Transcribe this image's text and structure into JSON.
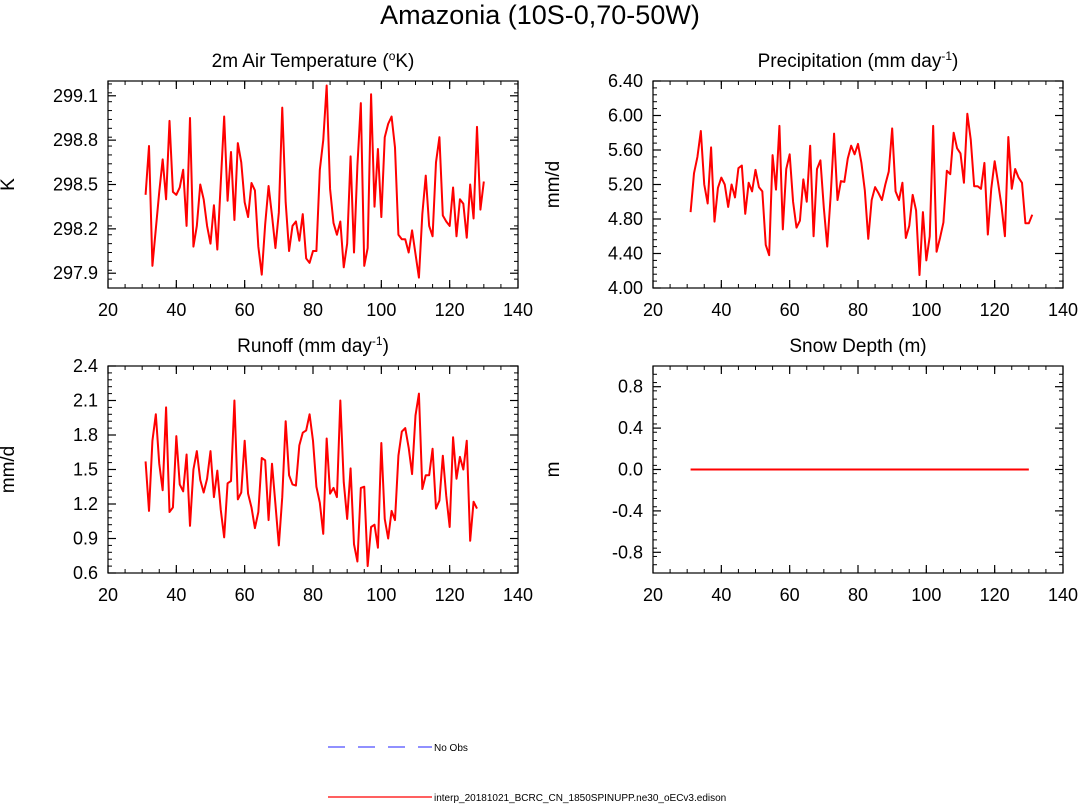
{
  "figure": {
    "title": "Amazonia (10S-0,70-50W)"
  },
  "legend": {
    "items": [
      {
        "label": "No Obs",
        "color": "#4d4dff",
        "style": "dashed"
      },
      {
        "label": "interp_20181021_BCRC_CN_1850SPINUPP.ne30_oECv3.edison",
        "color": "#ff0000",
        "style": "solid"
      }
    ]
  },
  "colors": {
    "series": "#ff0000",
    "axis": "#000000",
    "obs": "#4d4dff"
  },
  "chart_data": [
    {
      "type": "line",
      "title": "2m Air Temperature (",
      "title_sup": "o",
      "title_after": "K)",
      "xlabel": "",
      "ylabel": "K",
      "xlim": [
        20,
        140
      ],
      "ylim": [
        297.8,
        299.2
      ],
      "xticks": [
        20,
        40,
        60,
        80,
        100,
        120,
        140
      ],
      "yticks": [
        297.9,
        298.2,
        298.5,
        298.8,
        299.1
      ],
      "ytick_labels": [
        "297.9",
        "298.2",
        "298.5",
        "298.8",
        "299.1"
      ],
      "x_start": 31,
      "series": [
        {
          "name": "interp_20181021_BCRC_CN_1850SPINUPP.ne30_oECv3.edison",
          "values": [
            298.43,
            298.76,
            297.95,
            298.2,
            298.45,
            298.67,
            298.4,
            298.93,
            298.45,
            298.43,
            298.48,
            298.6,
            298.22,
            298.95,
            298.08,
            298.22,
            298.5,
            298.4,
            298.22,
            298.1,
            298.36,
            298.06,
            298.51,
            298.96,
            298.39,
            298.72,
            298.26,
            298.78,
            298.65,
            298.38,
            298.28,
            298.51,
            298.46,
            298.08,
            297.89,
            298.23,
            298.49,
            298.29,
            298.07,
            298.31,
            299.02,
            298.38,
            298.05,
            298.22,
            298.25,
            298.12,
            298.3,
            298.0,
            297.97,
            298.05,
            298.05,
            298.6,
            298.8,
            299.17,
            298.47,
            298.24,
            298.16,
            298.25,
            297.94,
            298.1,
            298.69,
            298.04,
            298.63,
            299.05,
            297.95,
            298.07,
            299.11,
            298.35,
            298.74,
            298.28,
            298.82,
            298.91,
            298.96,
            298.75,
            298.16,
            298.13,
            298.13,
            298.04,
            298.19,
            298.03,
            297.87,
            298.3,
            298.56,
            298.22,
            298.15,
            298.65,
            298.82,
            298.29,
            298.25,
            298.22,
            298.48,
            298.15,
            298.4,
            298.37,
            298.14,
            298.5,
            298.27,
            298.89,
            298.33,
            298.52
          ]
        }
      ]
    },
    {
      "type": "line",
      "title": "Precipitation (mm day",
      "title_sup": "-1",
      "title_after": ")",
      "xlabel": "",
      "ylabel": "mm/d",
      "xlim": [
        20,
        140
      ],
      "ylim": [
        4.0,
        6.4
      ],
      "xticks": [
        20,
        40,
        60,
        80,
        100,
        120,
        140
      ],
      "yticks": [
        4.0,
        4.4,
        4.8,
        5.2,
        5.6,
        6.0,
        6.4
      ],
      "ytick_labels": [
        "4.00",
        "4.40",
        "4.80",
        "5.20",
        "5.60",
        "6.00",
        "6.40"
      ],
      "x_start": 31,
      "series": [
        {
          "name": "interp_20181021_BCRC_CN_1850SPINUPP.ne30_oECv3.edison",
          "values": [
            4.88,
            5.33,
            5.52,
            5.82,
            5.2,
            4.98,
            5.63,
            4.77,
            5.16,
            5.28,
            5.2,
            4.94,
            5.2,
            5.05,
            5.39,
            5.42,
            4.86,
            5.22,
            5.12,
            5.37,
            5.17,
            5.12,
            4.5,
            4.38,
            5.54,
            5.14,
            5.88,
            4.68,
            5.38,
            5.55,
            5.0,
            4.7,
            4.78,
            5.26,
            5.0,
            5.65,
            4.6,
            5.38,
            5.48,
            4.93,
            4.48,
            5.07,
            5.79,
            5.02,
            5.24,
            5.23,
            5.5,
            5.65,
            5.55,
            5.67,
            5.45,
            5.13,
            4.57,
            5.02,
            5.17,
            5.1,
            5.02,
            5.2,
            5.35,
            5.85,
            5.12,
            5.02,
            5.22,
            4.58,
            4.72,
            5.08,
            4.9,
            4.15,
            4.88,
            4.32,
            4.6,
            5.88,
            4.42,
            4.58,
            4.76,
            5.36,
            5.32,
            5.8,
            5.62,
            5.56,
            5.22,
            6.02,
            5.72,
            5.18,
            5.18,
            5.15,
            5.45,
            4.62,
            5.15,
            5.47,
            5.22,
            4.95,
            4.6,
            5.75,
            5.15,
            5.38,
            5.28,
            5.22,
            4.75,
            4.75,
            4.85
          ]
        }
      ]
    },
    {
      "type": "line",
      "title": "Runoff (mm day",
      "title_sup": "-1",
      "title_after": ")",
      "xlabel": "",
      "ylabel": "mm/d",
      "xlim": [
        20,
        140
      ],
      "ylim": [
        0.6,
        2.4
      ],
      "xticks": [
        20,
        40,
        60,
        80,
        100,
        120,
        140
      ],
      "yticks": [
        0.6,
        0.9,
        1.2,
        1.5,
        1.8,
        2.1,
        2.4
      ],
      "ytick_labels": [
        "0.6",
        "0.9",
        "1.2",
        "1.5",
        "1.8",
        "2.1",
        "2.4"
      ],
      "x_start": 31,
      "series": [
        {
          "name": "interp_20181021_BCRC_CN_1850SPINUPP.ne30_oECv3.edison",
          "values": [
            1.57,
            1.14,
            1.75,
            1.98,
            1.55,
            1.32,
            2.04,
            1.13,
            1.17,
            1.79,
            1.37,
            1.31,
            1.63,
            1.01,
            1.5,
            1.66,
            1.41,
            1.3,
            1.42,
            1.66,
            1.26,
            1.49,
            1.15,
            0.91,
            1.38,
            1.4,
            2.1,
            1.24,
            1.3,
            1.75,
            1.29,
            1.17,
            0.99,
            1.13,
            1.6,
            1.58,
            1.06,
            1.55,
            1.2,
            0.84,
            1.26,
            1.92,
            1.45,
            1.37,
            1.36,
            1.71,
            1.82,
            1.84,
            1.98,
            1.75,
            1.35,
            1.21,
            0.94,
            1.77,
            1.29,
            1.34,
            1.26,
            2.1,
            1.39,
            1.07,
            1.51,
            0.85,
            0.7,
            1.34,
            1.35,
            0.66,
            1.0,
            1.02,
            0.82,
            1.73,
            1.07,
            0.9,
            1.14,
            1.06,
            1.62,
            1.83,
            1.86,
            1.69,
            1.46,
            1.97,
            2.16,
            1.33,
            1.45,
            1.45,
            1.68,
            1.16,
            1.23,
            1.62,
            1.27,
            1.0,
            1.78,
            1.42,
            1.61,
            1.5,
            1.75,
            0.88,
            1.22,
            1.16
          ]
        }
      ]
    },
    {
      "type": "line",
      "title": "Snow Depth (m)",
      "title_sup": "",
      "title_after": "",
      "xlabel": "",
      "ylabel": "m",
      "xlim": [
        20,
        140
      ],
      "ylim": [
        -1.0,
        1.0
      ],
      "xticks": [
        20,
        40,
        60,
        80,
        100,
        120,
        140
      ],
      "yticks": [
        -0.8,
        -0.4,
        0.0,
        0.4,
        0.8
      ],
      "ytick_labels": [
        "-0.8",
        "-0.4",
        "0.0",
        "0.4",
        "0.8"
      ],
      "x_start": 31,
      "series": [
        {
          "name": "interp_20181021_BCRC_CN_1850SPINUPP.ne30_oECv3.edison",
          "values": [
            0,
            0,
            0,
            0,
            0,
            0,
            0,
            0,
            0,
            0,
            0,
            0,
            0,
            0,
            0,
            0,
            0,
            0,
            0,
            0,
            0,
            0,
            0,
            0,
            0,
            0,
            0,
            0,
            0,
            0,
            0,
            0,
            0,
            0,
            0,
            0,
            0,
            0,
            0,
            0,
            0,
            0,
            0,
            0,
            0,
            0,
            0,
            0,
            0,
            0,
            0,
            0,
            0,
            0,
            0,
            0,
            0,
            0,
            0,
            0,
            0,
            0,
            0,
            0,
            0,
            0,
            0,
            0,
            0,
            0,
            0,
            0,
            0,
            0,
            0,
            0,
            0,
            0,
            0,
            0,
            0,
            0,
            0,
            0,
            0,
            0,
            0,
            0,
            0,
            0,
            0,
            0,
            0,
            0,
            0,
            0,
            0,
            0,
            0,
            0
          ]
        }
      ]
    }
  ]
}
